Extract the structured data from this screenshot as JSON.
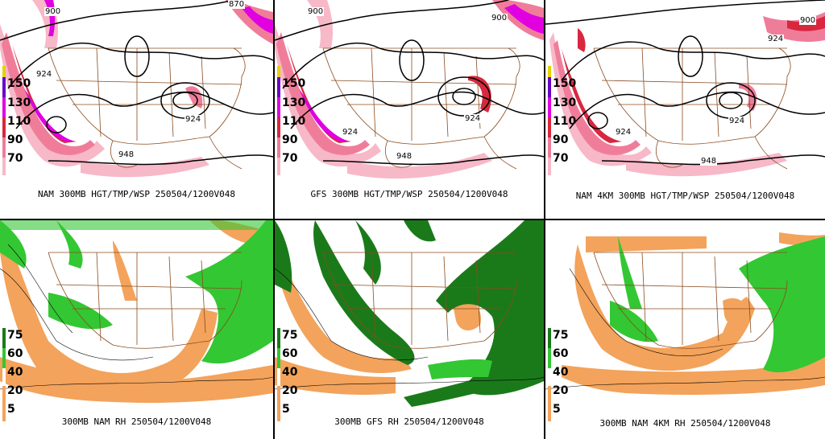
{
  "panels": [
    {
      "id": "nam-hgt",
      "caption": "NAM 300MB HGT/TMP/WSP 250504/1200V048",
      "legend": [
        "150",
        "130",
        "110",
        "90",
        "70"
      ],
      "contour_labels": [
        "900",
        "870",
        "924",
        "924",
        "948"
      ]
    },
    {
      "id": "gfs-hgt",
      "caption": "GFS 300MB HGT/TMP/WSP 250504/1200V048",
      "legend": [
        "150",
        "130",
        "110",
        "90",
        "70"
      ],
      "contour_labels": [
        "900",
        "900",
        "924",
        "924",
        "948"
      ]
    },
    {
      "id": "nam4km-hgt",
      "caption": "NAM 4KM 300MB HGT/TMP/WSP 250504/1200V048",
      "legend": [
        "150",
        "130",
        "110",
        "90",
        "70"
      ],
      "contour_labels": [
        "900",
        "924",
        "924",
        "924",
        "948"
      ]
    },
    {
      "id": "nam-rh",
      "caption": "300MB NAM RH 250504/1200V048",
      "legend": [
        "75",
        "60",
        "40",
        "20",
        "5"
      ]
    },
    {
      "id": "gfs-rh",
      "caption": "300MB GFS RH 250504/1200V048",
      "legend": [
        "75",
        "60",
        "40",
        "20",
        "5"
      ]
    },
    {
      "id": "nam4km-rh",
      "caption": "300MB NAM 4KM RH 250504/1200V048",
      "legend": [
        "75",
        "60",
        "40",
        "20",
        "5"
      ]
    }
  ],
  "colors": {
    "jet_pink_light": "#f7b8c8",
    "jet_pink": "#ef7d9a",
    "jet_red": "#d8273f",
    "jet_magenta": "#e000e0",
    "jet_purple": "#6a00c8",
    "rh_green_light": "#33c733",
    "rh_green_dark": "#1a7a1a",
    "rh_orange": "#f3a35b",
    "borders": "#8a4b1e",
    "contours": "#000000"
  }
}
